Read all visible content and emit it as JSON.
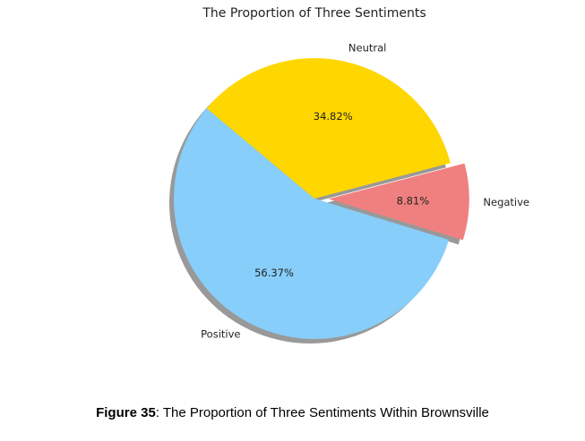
{
  "chart_data": {
    "type": "pie",
    "title": "The Proportion of Three Sentiments",
    "slices": [
      {
        "label": "Positive",
        "value": 56.37,
        "pct_label": "56.37%",
        "color": "#87CEFA",
        "explode": 0
      },
      {
        "label": "Negative",
        "value": 8.81,
        "pct_label": "8.81%",
        "color": "#F08080",
        "explode": 0.1
      },
      {
        "label": "Neutral",
        "value": 34.82,
        "pct_label": "34.82%",
        "color": "#FFD700",
        "explode": 0
      }
    ],
    "start_angle": 140,
    "direction": "counterclockwise",
    "shadow": true,
    "legend": "none"
  },
  "caption": {
    "label": "Figure 35",
    "text": ": The Proportion of Three Sentiments Within Brownsville"
  }
}
